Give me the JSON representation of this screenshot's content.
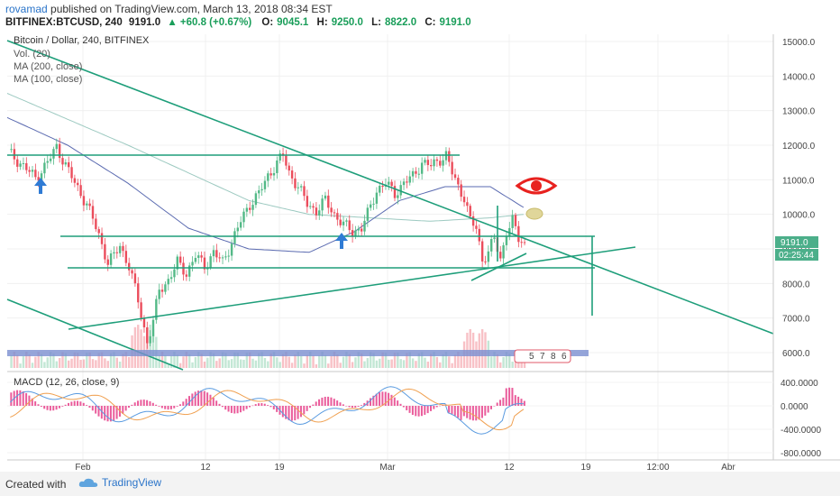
{
  "header": {
    "user": "rovamad",
    "published": "published on TradingView.com, March 13, 2018 08:34 EST",
    "symbol": "BITFINEX:BTCUSD, 240",
    "last": "9191.0",
    "change": "+60.8 (+0.67%)",
    "o_label": "O:",
    "o_value": "9045.1",
    "h_label": "H:",
    "h_value": "9250.0",
    "l_label": "L:",
    "l_value": "8822.0",
    "c_label": "C:",
    "c_value": "9191.0"
  },
  "legend": {
    "main": "Bitcoin / Dollar, 240, BITFINEX",
    "vol": "Vol. (20)",
    "ma200": "MA (200, close)",
    "ma100": "MA (100, close)",
    "macd": "MACD (12, 26, close, 9)"
  },
  "footer": {
    "created": "Created with",
    "brand": "TradingView"
  },
  "colors": {
    "up": "#53b987",
    "down": "#eb4d5c",
    "line": "#1e9e7a",
    "ma100": "#5a6ab0",
    "ma200": "#9cc9c0",
    "price_tag": "#4caf8a",
    "eye": "#e8221f"
  },
  "chart_data": {
    "type": "candlestick",
    "price_axis": {
      "ticks": [
        15000,
        14000,
        13000,
        12000,
        11000,
        10000,
        9000,
        8000,
        7000,
        6000
      ],
      "labels": [
        "15000.0",
        "14000.0",
        "13000.0",
        "12000.0",
        "11000.0",
        "10000.0",
        "9000.0",
        "8000.0",
        "7000.0",
        "6000.0"
      ]
    },
    "last_price_tag": "9191.0",
    "countdown_tag": "02:25:44",
    "macd_axis": {
      "ticks": [
        400,
        0,
        -400,
        -800
      ],
      "labels": [
        "400.0000",
        "0.0000",
        "-400.0000",
        "-800.0000"
      ]
    },
    "time_axis": [
      "Feb",
      "12",
      "19",
      "Mar",
      "12",
      "19",
      "12:00",
      "Abr"
    ],
    "volume_profile_labels": [
      "5",
      "7",
      "8",
      "6"
    ],
    "price_path": [
      [
        0,
        11800
      ],
      [
        5,
        11400
      ],
      [
        9,
        11050
      ],
      [
        13,
        11500
      ],
      [
        16,
        11950
      ],
      [
        18,
        11600
      ],
      [
        22,
        10900
      ],
      [
        26,
        10300
      ],
      [
        30,
        9400
      ],
      [
        33,
        8600
      ],
      [
        35,
        8800
      ],
      [
        37,
        9100
      ],
      [
        40,
        8500
      ],
      [
        43,
        7500
      ],
      [
        46,
        6300
      ],
      [
        48,
        6900
      ],
      [
        50,
        7800
      ],
      [
        53,
        8100
      ],
      [
        56,
        8600
      ],
      [
        59,
        8300
      ],
      [
        62,
        8800
      ],
      [
        65,
        8500
      ],
      [
        68,
        8900
      ],
      [
        71,
        8600
      ],
      [
        74,
        9200
      ],
      [
        77,
        9800
      ],
      [
        80,
        10300
      ],
      [
        83,
        10600
      ],
      [
        86,
        11100
      ],
      [
        89,
        11500
      ],
      [
        91,
        11700
      ],
      [
        93,
        11200
      ],
      [
        96,
        10800
      ],
      [
        99,
        10300
      ],
      [
        102,
        10100
      ],
      [
        105,
        10400
      ],
      [
        108,
        10000
      ],
      [
        111,
        9700
      ],
      [
        114,
        9500
      ],
      [
        117,
        9600
      ],
      [
        119,
        10000
      ],
      [
        122,
        10700
      ],
      [
        125,
        10900
      ],
      [
        128,
        10600
      ],
      [
        131,
        10900
      ],
      [
        134,
        11100
      ],
      [
        137,
        11500
      ],
      [
        140,
        11400
      ],
      [
        143,
        11600
      ],
      [
        145,
        11700
      ],
      [
        147,
        11200
      ],
      [
        149,
        10800
      ],
      [
        151,
        10500
      ],
      [
        153,
        9800
      ],
      [
        155,
        9600
      ],
      [
        157,
        8700
      ],
      [
        159,
        8900
      ],
      [
        161,
        9300
      ],
      [
        163,
        8700
      ],
      [
        165,
        9500
      ],
      [
        167,
        9800
      ],
      [
        169,
        9300
      ],
      [
        171,
        9191
      ]
    ],
    "ma100_path": [
      [
        0,
        12800
      ],
      [
        20,
        12000
      ],
      [
        40,
        10900
      ],
      [
        60,
        9600
      ],
      [
        80,
        9000
      ],
      [
        100,
        8900
      ],
      [
        115,
        9500
      ],
      [
        130,
        10400
      ],
      [
        145,
        10800
      ],
      [
        160,
        10800
      ],
      [
        171,
        10200
      ]
    ],
    "ma200_path": [
      [
        0,
        13500
      ],
      [
        40,
        12000
      ],
      [
        80,
        10400
      ],
      [
        100,
        10000
      ],
      [
        120,
        9900
      ],
      [
        140,
        9800
      ],
      [
        160,
        9900
      ],
      [
        171,
        10000
      ]
    ]
  }
}
